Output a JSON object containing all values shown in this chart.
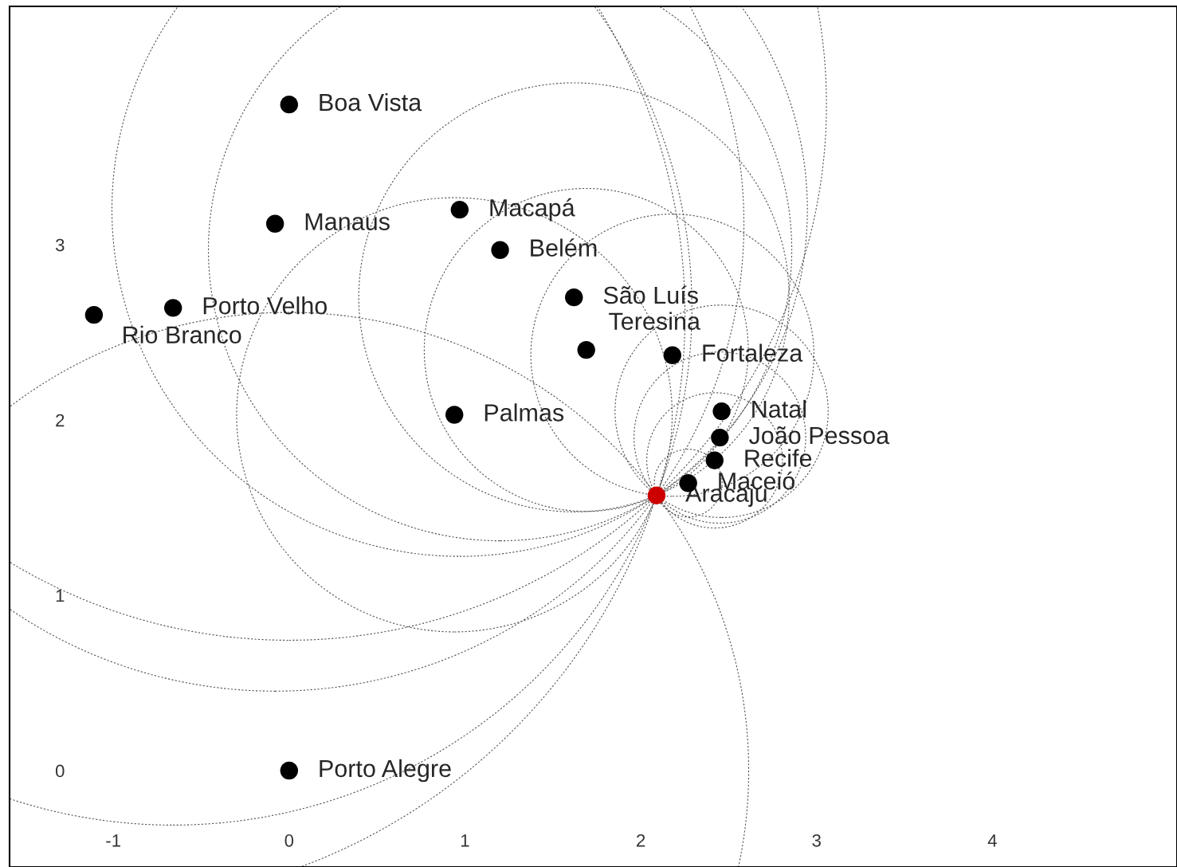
{
  "chart_data": {
    "type": "scatter",
    "x": [
      0.0,
      -0.08,
      0.97,
      1.2,
      1.62,
      1.69,
      2.18,
      -0.66,
      -1.11,
      0.94,
      2.46,
      2.45,
      2.42,
      2.27,
      2.09,
      0.0
    ],
    "values": [
      3.8,
      3.12,
      3.2,
      2.97,
      2.7,
      2.4,
      2.37,
      2.64,
      2.6,
      2.03,
      2.05,
      1.9,
      1.77,
      1.64,
      1.57,
      0.0
    ],
    "colors": [
      "#000000",
      "#000000",
      "#000000",
      "#000000",
      "#000000",
      "#000000",
      "#000000",
      "#000000",
      "#000000",
      "#000000",
      "#000000",
      "#000000",
      "#000000",
      "#000000",
      "#cc0000",
      "#000000"
    ],
    "annotations": [
      {
        "text": "Boa Vista",
        "x": 0.0,
        "y": 3.8
      },
      {
        "text": "Manaus",
        "x": -0.08,
        "y": 3.12
      },
      {
        "text": "Macapá",
        "x": 0.97,
        "y": 3.2
      },
      {
        "text": "Belém",
        "x": 1.2,
        "y": 2.97
      },
      {
        "text": "São Luís",
        "x": 1.62,
        "y": 2.7
      },
      {
        "text": "Teresina",
        "x": 1.69,
        "y": 2.4
      },
      {
        "text": "Fortaleza",
        "x": 2.18,
        "y": 2.37
      },
      {
        "text": "Porto Velho",
        "x": -0.66,
        "y": 2.64
      },
      {
        "text": "Rio Branco",
        "x": -1.11,
        "y": 2.6
      },
      {
        "text": "Palmas",
        "x": 0.94,
        "y": 2.03
      },
      {
        "text": "Natal",
        "x": 2.46,
        "y": 2.05
      },
      {
        "text": "João Pessoa",
        "x": 2.45,
        "y": 1.9
      },
      {
        "text": "Recife",
        "x": 2.42,
        "y": 1.77
      },
      {
        "text": "Maceió",
        "x": 2.27,
        "y": 1.64
      },
      {
        "text": "Aracaju",
        "x": 2.09,
        "y": 1.57
      },
      {
        "text": "Porto Alegre",
        "x": 0.0,
        "y": 0.0
      }
    ],
    "xlim": [
      -1.59,
      5.05
    ],
    "ylim": [
      -0.55,
      4.36
    ],
    "xticks": [
      -1,
      0,
      1,
      2,
      3,
      4
    ],
    "yticks": [
      0,
      1,
      2,
      3
    ],
    "grid": false,
    "marker": "circle"
  }
}
